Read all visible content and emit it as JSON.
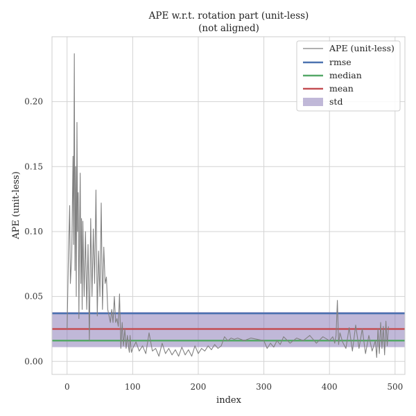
{
  "chart_data": {
    "type": "line",
    "title": "APE w.r.t. rotation part (unit-less)",
    "subtitle": "(not aligned)",
    "xlabel": "index",
    "ylabel": "APE (unit-less)",
    "xlim": [
      -23,
      515
    ],
    "ylim": [
      -0.01,
      0.25
    ],
    "xticks": [
      "0",
      "100",
      "200",
      "300",
      "400",
      "500"
    ],
    "yticks": [
      "0.00",
      "0.05",
      "0.10",
      "0.15",
      "0.20"
    ],
    "grid": true,
    "legend_position": "top-right",
    "legend": [
      "APE (unit-less)",
      "rmse",
      "median",
      "mean",
      "std"
    ],
    "colors": {
      "ape": "#808080",
      "rmse": "#4c72b0",
      "median": "#55a868",
      "mean": "#c44e52",
      "std": "#8172b2"
    },
    "stats": {
      "rmse": 0.037,
      "median": 0.016,
      "mean": 0.025,
      "std_band": [
        0.011,
        0.038
      ]
    },
    "series": [
      {
        "name": "APE (unit-less)",
        "x": [
          0,
          2,
          4,
          5,
          7,
          9,
          10,
          11,
          12,
          13,
          14,
          15,
          16,
          17,
          18,
          19,
          20,
          21,
          22,
          23,
          24,
          26,
          28,
          30,
          32,
          34,
          36,
          38,
          40,
          42,
          44,
          46,
          48,
          50,
          52,
          54,
          56,
          58,
          60,
          62,
          64,
          66,
          68,
          70,
          72,
          74,
          76,
          78,
          80,
          82,
          84,
          86,
          88,
          90,
          92,
          94,
          95,
          96,
          98,
          100,
          105,
          110,
          115,
          120,
          125,
          130,
          135,
          140,
          145,
          150,
          155,
          160,
          165,
          170,
          175,
          180,
          185,
          190,
          195,
          200,
          205,
          210,
          215,
          220,
          225,
          230,
          235,
          240,
          245,
          250,
          255,
          260,
          270,
          280,
          290,
          300,
          305,
          310,
          315,
          320,
          325,
          330,
          340,
          350,
          360,
          370,
          380,
          390,
          400,
          405,
          408,
          410,
          412,
          414,
          416,
          420,
          425,
          430,
          435,
          440,
          445,
          450,
          455,
          460,
          465,
          470,
          472,
          474,
          476,
          478,
          480,
          482,
          484,
          486,
          488,
          490
        ],
        "y": [
          0.025,
          0.082,
          0.12,
          0.06,
          0.08,
          0.158,
          0.09,
          0.237,
          0.07,
          0.15,
          0.05,
          0.184,
          0.1,
          0.13,
          0.033,
          0.1,
          0.145,
          0.06,
          0.11,
          0.04,
          0.108,
          0.05,
          0.1,
          0.04,
          0.09,
          0.016,
          0.11,
          0.05,
          0.102,
          0.06,
          0.132,
          0.035,
          0.085,
          0.05,
          0.122,
          0.04,
          0.088,
          0.06,
          0.065,
          0.04,
          0.035,
          0.03,
          0.04,
          0.03,
          0.05,
          0.03,
          0.033,
          0.027,
          0.052,
          0.01,
          0.03,
          0.012,
          0.025,
          0.01,
          0.02,
          0.01,
          0.007,
          0.02,
          0.007,
          0.01,
          0.015,
          0.008,
          0.012,
          0.006,
          0.022,
          0.008,
          0.01,
          0.004,
          0.014,
          0.006,
          0.01,
          0.005,
          0.009,
          0.004,
          0.011,
          0.005,
          0.009,
          0.004,
          0.012,
          0.006,
          0.01,
          0.008,
          0.012,
          0.009,
          0.013,
          0.01,
          0.012,
          0.019,
          0.016,
          0.018,
          0.017,
          0.018,
          0.016,
          0.018,
          0.017,
          0.016,
          0.01,
          0.014,
          0.011,
          0.016,
          0.013,
          0.019,
          0.014,
          0.018,
          0.016,
          0.02,
          0.014,
          0.019,
          0.016,
          0.019,
          0.014,
          0.02,
          0.047,
          0.013,
          0.022,
          0.015,
          0.01,
          0.026,
          0.008,
          0.028,
          0.01,
          0.025,
          0.006,
          0.02,
          0.008,
          0.016,
          0.003,
          0.025,
          0.006,
          0.03,
          0.01,
          0.027,
          0.005,
          0.031,
          0.012,
          0.027
        ]
      }
    ]
  }
}
